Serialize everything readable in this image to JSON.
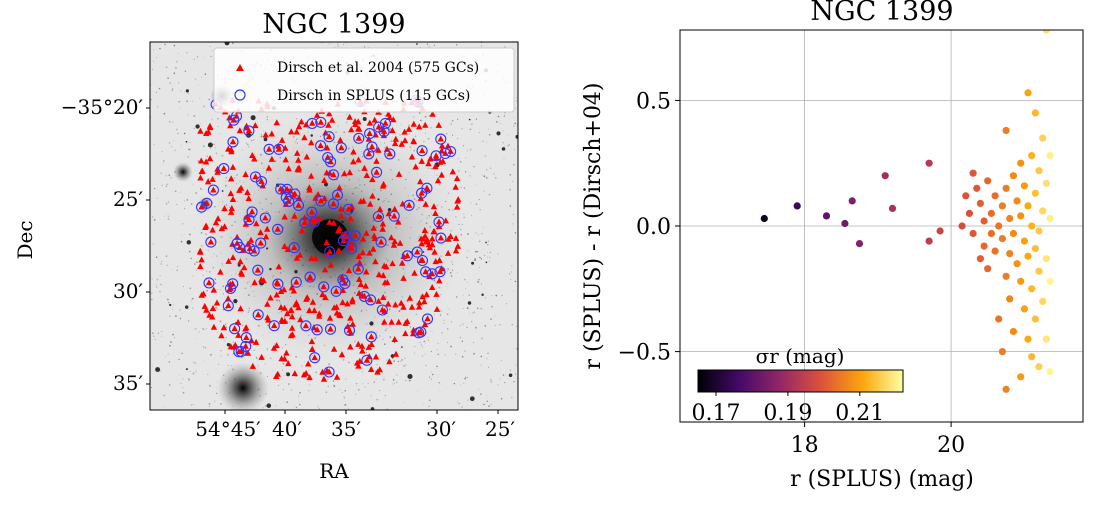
{
  "chart_data": [
    {
      "type": "scatter",
      "title": "NGC 1399",
      "xlabel": "RA",
      "ylabel": "Dec",
      "x_ticks": [
        "54°45′",
        "40′",
        "35′",
        "30′",
        "25′"
      ],
      "y_ticks": [
        "−35°20′",
        "25′",
        "30′",
        "35′"
      ],
      "xlim_arcmin_offset": [
        50,
        25
      ],
      "ylim_arcmin": [
        16.5,
        36.8
      ],
      "legend_position": "top-right",
      "series": [
        {
          "name": "Dirsch et al. 2004 (575 GCs)",
          "marker": "triangle",
          "color": "#ff0000"
        },
        {
          "name": "Dirsch in SPLUS (115 GCs)",
          "marker": "open-circle",
          "color": "#3333ff"
        }
      ]
    },
    {
      "type": "scatter",
      "title": "NGC 1399",
      "xlabel": "r (SPLUS) (mag)",
      "ylabel": "r (SPLUS) - r (Dirsch+04)",
      "xlim": [
        16.3,
        21.8
      ],
      "ylim": [
        -0.78,
        0.78
      ],
      "x_ticks": [
        18,
        20
      ],
      "y_ticks": [
        0.5,
        0.0,
        -0.5
      ],
      "grid": true,
      "colorbar": {
        "label": "σr (mag)",
        "ticks": [
          0.17,
          0.19,
          0.21
        ],
        "range": [
          0.165,
          0.222
        ],
        "colormap": "inferno",
        "position": "lower-left"
      },
      "points": [
        {
          "x": 17.45,
          "y": 0.03,
          "c": 0.168
        },
        {
          "x": 17.9,
          "y": 0.08,
          "c": 0.175
        },
        {
          "x": 18.3,
          "y": 0.04,
          "c": 0.18
        },
        {
          "x": 18.55,
          "y": 0.01,
          "c": 0.183
        },
        {
          "x": 18.65,
          "y": 0.1,
          "c": 0.185
        },
        {
          "x": 18.75,
          "y": -0.07,
          "c": 0.186
        },
        {
          "x": 19.1,
          "y": 0.2,
          "c": 0.19
        },
        {
          "x": 19.2,
          "y": 0.07,
          "c": 0.191
        },
        {
          "x": 19.7,
          "y": 0.25,
          "c": 0.193
        },
        {
          "x": 19.7,
          "y": -0.06,
          "c": 0.194
        },
        {
          "x": 19.85,
          "y": -0.02,
          "c": 0.196
        },
        {
          "x": 20.15,
          "y": 0.0,
          "c": 0.198
        },
        {
          "x": 20.2,
          "y": 0.12,
          "c": 0.199
        },
        {
          "x": 20.25,
          "y": 0.05,
          "c": 0.199
        },
        {
          "x": 20.3,
          "y": 0.21,
          "c": 0.2
        },
        {
          "x": 20.3,
          "y": -0.03,
          "c": 0.2
        },
        {
          "x": 20.35,
          "y": 0.15,
          "c": 0.2
        },
        {
          "x": 20.4,
          "y": -0.13,
          "c": 0.201
        },
        {
          "x": 20.4,
          "y": 0.09,
          "c": 0.201
        },
        {
          "x": 20.45,
          "y": 0.02,
          "c": 0.201
        },
        {
          "x": 20.45,
          "y": -0.08,
          "c": 0.202
        },
        {
          "x": 20.5,
          "y": 0.18,
          "c": 0.202
        },
        {
          "x": 20.5,
          "y": -0.17,
          "c": 0.202
        },
        {
          "x": 20.55,
          "y": 0.05,
          "c": 0.203
        },
        {
          "x": 20.55,
          "y": -0.03,
          "c": 0.203
        },
        {
          "x": 20.6,
          "y": 0.12,
          "c": 0.203
        },
        {
          "x": 20.6,
          "y": -0.1,
          "c": 0.204
        },
        {
          "x": 20.65,
          "y": 0.0,
          "c": 0.204
        },
        {
          "x": 20.65,
          "y": -0.37,
          "c": 0.204
        },
        {
          "x": 20.7,
          "y": 0.08,
          "c": 0.205
        },
        {
          "x": 20.7,
          "y": -0.05,
          "c": 0.205
        },
        {
          "x": 20.7,
          "y": -0.5,
          "c": 0.205
        },
        {
          "x": 20.75,
          "y": 0.38,
          "c": 0.205
        },
        {
          "x": 20.75,
          "y": 0.15,
          "c": 0.205
        },
        {
          "x": 20.75,
          "y": -0.2,
          "c": 0.205
        },
        {
          "x": 20.75,
          "y": -0.65,
          "c": 0.206
        },
        {
          "x": 20.8,
          "y": 0.03,
          "c": 0.206
        },
        {
          "x": 20.8,
          "y": -0.11,
          "c": 0.206
        },
        {
          "x": 20.8,
          "y": -0.29,
          "c": 0.206
        },
        {
          "x": 20.85,
          "y": 0.2,
          "c": 0.207
        },
        {
          "x": 20.85,
          "y": -0.03,
          "c": 0.207
        },
        {
          "x": 20.85,
          "y": -0.42,
          "c": 0.207
        },
        {
          "x": 20.9,
          "y": 0.1,
          "c": 0.207
        },
        {
          "x": 20.9,
          "y": -0.15,
          "c": 0.208
        },
        {
          "x": 20.95,
          "y": 0.25,
          "c": 0.208
        },
        {
          "x": 20.95,
          "y": 0.04,
          "c": 0.208
        },
        {
          "x": 20.95,
          "y": -0.22,
          "c": 0.209
        },
        {
          "x": 20.95,
          "y": -0.6,
          "c": 0.209
        },
        {
          "x": 21.0,
          "y": 0.16,
          "c": 0.209
        },
        {
          "x": 21.0,
          "y": -0.06,
          "c": 0.21
        },
        {
          "x": 21.0,
          "y": -0.33,
          "c": 0.21
        },
        {
          "x": 21.05,
          "y": 0.53,
          "c": 0.21
        },
        {
          "x": 21.05,
          "y": 0.08,
          "c": 0.211
        },
        {
          "x": 21.05,
          "y": -0.12,
          "c": 0.211
        },
        {
          "x": 21.05,
          "y": -0.45,
          "c": 0.211
        },
        {
          "x": 21.1,
          "y": 0.28,
          "c": 0.212
        },
        {
          "x": 21.1,
          "y": 0.0,
          "c": 0.212
        },
        {
          "x": 21.1,
          "y": -0.25,
          "c": 0.213
        },
        {
          "x": 21.1,
          "y": -0.52,
          "c": 0.213
        },
        {
          "x": 21.15,
          "y": 0.45,
          "c": 0.213
        },
        {
          "x": 21.15,
          "y": 0.13,
          "c": 0.214
        },
        {
          "x": 21.15,
          "y": -0.09,
          "c": 0.214
        },
        {
          "x": 21.15,
          "y": -0.37,
          "c": 0.214
        },
        {
          "x": 21.2,
          "y": 0.22,
          "c": 0.215
        },
        {
          "x": 21.2,
          "y": -0.02,
          "c": 0.215
        },
        {
          "x": 21.2,
          "y": -0.18,
          "c": 0.215
        },
        {
          "x": 21.2,
          "y": -0.56,
          "c": 0.216
        },
        {
          "x": 21.25,
          "y": 0.35,
          "c": 0.216
        },
        {
          "x": 21.25,
          "y": 0.06,
          "c": 0.217
        },
        {
          "x": 21.25,
          "y": -0.3,
          "c": 0.217
        },
        {
          "x": 21.3,
          "y": 0.78,
          "c": 0.218
        },
        {
          "x": 21.3,
          "y": 0.17,
          "c": 0.218
        },
        {
          "x": 21.3,
          "y": -0.13,
          "c": 0.219
        },
        {
          "x": 21.3,
          "y": -0.45,
          "c": 0.219
        },
        {
          "x": 21.35,
          "y": 0.03,
          "c": 0.22
        },
        {
          "x": 21.35,
          "y": 0.28,
          "c": 0.22
        },
        {
          "x": 21.35,
          "y": -0.22,
          "c": 0.221
        },
        {
          "x": 21.35,
          "y": -0.58,
          "c": 0.221
        }
      ]
    }
  ]
}
